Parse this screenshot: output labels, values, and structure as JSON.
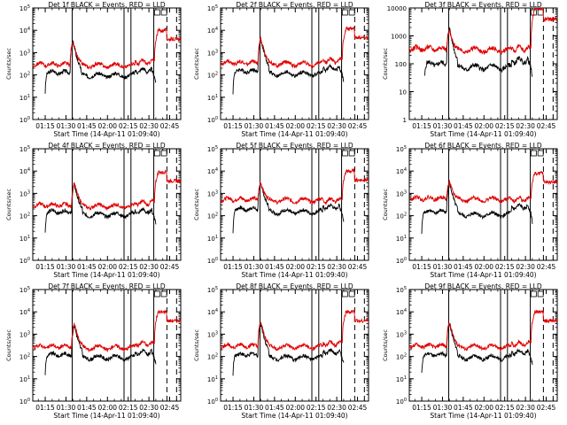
{
  "colors": {
    "events": "#000000",
    "lld": "#e00000",
    "axes": "#000000",
    "background": "#ffffff"
  },
  "panel_common": {
    "title_suffix": "BLACK = Events, RED = LLD",
    "xlabel": "Start Time (14-Apr-11 01:09:40)",
    "ylabel": "Counts/sec",
    "x_ticks": [
      "01:15",
      "01:30",
      "01:45",
      "02:00",
      "02:15",
      "02:30",
      "02:45"
    ],
    "x_tick_minutes": [
      15,
      30,
      45,
      60,
      75,
      90,
      105
    ],
    "xlim_minutes": [
      6,
      113
    ]
  },
  "chart_data": [
    {
      "type": "line",
      "title": "Det 1f",
      "yscale": "log",
      "ylim": [
        1,
        100000
      ],
      "y_ticks": [
        "10^0",
        "10^1",
        "10^2",
        "10^3",
        "10^4",
        "10^5"
      ],
      "series": [
        {
          "values": {
            "start": 16,
            "base": 130,
            "peak": 3000,
            "peak_at": 35,
            "late": 160,
            "end": 90
          }
        },
        {
          "values": {
            "base": 300,
            "peak": 3200,
            "peak_at": 35,
            "late": 380,
            "high": 10000
          }
        }
      ],
      "vlines_solid": [
        34.5,
        72,
        77,
        93.5
      ],
      "vlines_dashed": [
        103,
        110
      ]
    },
    {
      "type": "line",
      "title": "Det 2f",
      "yscale": "log",
      "ylim": [
        1,
        100000
      ],
      "y_ticks": [
        "10^0",
        "10^1",
        "10^2",
        "10^3",
        "10^4",
        "10^5"
      ],
      "series": [
        {
          "values": {
            "start": 16,
            "base": 150,
            "peak": 4000,
            "peak_at": 35,
            "late": 200,
            "end": 100
          }
        },
        {
          "values": {
            "base": 350,
            "peak": 4500,
            "peak_at": 35,
            "late": 450,
            "high": 12000
          }
        }
      ],
      "vlines_solid": [
        34.5,
        72,
        77,
        93.5
      ],
      "vlines_dashed": [
        103,
        110
      ]
    },
    {
      "type": "line",
      "title": "Det 3f",
      "yscale": "log",
      "ylim": [
        1,
        10000
      ],
      "y_ticks": [
        "1",
        "10",
        "100",
        "1000",
        "10000"
      ],
      "series": [
        {
          "values": {
            "start": 32,
            "base": 100,
            "peak": 2000,
            "peak_at": 35,
            "late": 130,
            "end": 70
          }
        },
        {
          "values": {
            "base": 350,
            "peak": 1500,
            "peak_at": 35,
            "late": 350,
            "high": 10000
          }
        }
      ],
      "vlines_solid": [
        34.5,
        72,
        77,
        93.5
      ],
      "vlines_dashed": [
        103,
        110
      ]
    },
    {
      "type": "line",
      "title": "Det 4f",
      "yscale": "log",
      "ylim": [
        1,
        100000
      ],
      "y_ticks": [
        "10^0",
        "10^1",
        "10^2",
        "10^3",
        "10^4",
        "10^5"
      ],
      "series": [
        {
          "values": {
            "start": 16,
            "base": 150,
            "peak": 2500,
            "peak_at": 36,
            "late": 160,
            "end": 90
          }
        },
        {
          "values": {
            "base": 300,
            "peak": 3000,
            "peak_at": 36,
            "late": 380,
            "high": 9000
          }
        }
      ],
      "vlines_solid": [
        34.5,
        72,
        77,
        93.5
      ],
      "vlines_dashed": [
        103,
        110
      ]
    },
    {
      "type": "line",
      "title": "Det 5f",
      "yscale": "log",
      "ylim": [
        1,
        100000
      ],
      "y_ticks": [
        "10^0",
        "10^1",
        "10^2",
        "10^3",
        "10^4",
        "10^5"
      ],
      "series": [
        {
          "values": {
            "start": 16,
            "base": 200,
            "peak": 3000,
            "peak_at": 35,
            "late": 250,
            "end": 100
          }
        },
        {
          "values": {
            "base": 550,
            "peak": 3200,
            "peak_at": 35,
            "late": 500,
            "high": 10000
          }
        }
      ],
      "vlines_solid": [
        34.5,
        72,
        77,
        93.5
      ],
      "vlines_dashed": [
        103,
        110
      ]
    },
    {
      "type": "line",
      "title": "Det 6f",
      "yscale": "log",
      "ylim": [
        1,
        100000
      ],
      "y_ticks": [
        "10^0",
        "10^1",
        "10^2",
        "10^3",
        "10^4",
        "10^5"
      ],
      "series": [
        {
          "values": {
            "start": 16,
            "base": 150,
            "peak": 3000,
            "peak_at": 35,
            "late": 250,
            "end": 100
          }
        },
        {
          "values": {
            "base": 600,
            "peak": 3500,
            "peak_at": 35,
            "late": 550,
            "high": 8000
          }
        }
      ],
      "vlines_solid": [
        34.5,
        72,
        77,
        93.5
      ],
      "vlines_dashed": [
        103,
        110
      ]
    },
    {
      "type": "line",
      "title": "Det 7f",
      "yscale": "log",
      "ylim": [
        1,
        100000
      ],
      "y_ticks": [
        "10^0",
        "10^1",
        "10^2",
        "10^3",
        "10^4",
        "10^5"
      ],
      "series": [
        {
          "values": {
            "start": 16,
            "base": 120,
            "peak": 2500,
            "peak_at": 36,
            "late": 150,
            "end": 90
          }
        },
        {
          "values": {
            "base": 280,
            "peak": 3000,
            "peak_at": 36,
            "late": 380,
            "high": 10000
          }
        }
      ],
      "vlines_solid": [
        34.5,
        72,
        77,
        93.5
      ],
      "vlines_dashed": [
        103,
        110
      ]
    },
    {
      "type": "line",
      "title": "Det 8f",
      "yscale": "log",
      "ylim": [
        1,
        100000
      ],
      "y_ticks": [
        "10^0",
        "10^1",
        "10^2",
        "10^3",
        "10^4",
        "10^5"
      ],
      "series": [
        {
          "values": {
            "start": 16,
            "base": 120,
            "peak": 3000,
            "peak_at": 35,
            "late": 160,
            "end": 90
          }
        },
        {
          "values": {
            "base": 300,
            "peak": 3500,
            "peak_at": 35,
            "late": 380,
            "high": 10000
          }
        }
      ],
      "vlines_solid": [
        34.5,
        72,
        77,
        93.5
      ],
      "vlines_dashed": [
        103,
        110
      ]
    },
    {
      "type": "line",
      "title": "Det 9f",
      "yscale": "log",
      "ylim": [
        1,
        100000
      ],
      "y_ticks": [
        "10^0",
        "10^1",
        "10^2",
        "10^3",
        "10^4",
        "10^5"
      ],
      "series": [
        {
          "values": {
            "start": 16,
            "base": 120,
            "peak": 3000,
            "peak_at": 35,
            "late": 160,
            "end": 90
          }
        },
        {
          "values": {
            "base": 300,
            "peak": 3500,
            "peak_at": 35,
            "late": 380,
            "high": 10000
          }
        }
      ],
      "vlines_solid": [
        34.5,
        72,
        77,
        93.5
      ],
      "vlines_dashed": [
        103,
        110
      ]
    }
  ]
}
